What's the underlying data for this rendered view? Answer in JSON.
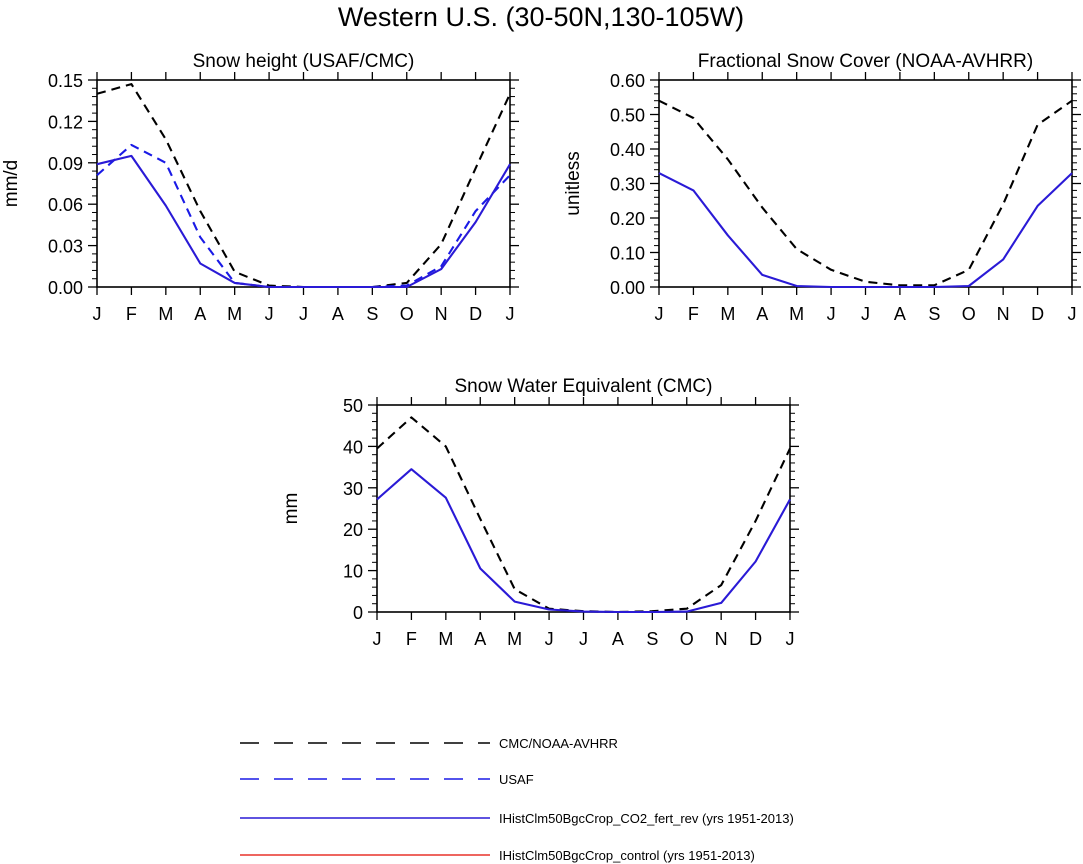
{
  "title": "Western U.S. (30-50N,130-105W)",
  "months": [
    "J",
    "F",
    "M",
    "A",
    "M",
    "J",
    "J",
    "A",
    "S",
    "O",
    "N",
    "D",
    "J"
  ],
  "colors": {
    "obs": "#000000",
    "usaf": "#1a1ae6",
    "co2": "#2a1ad6",
    "control": "#e8322a"
  },
  "legend": [
    {
      "label": "CMC/NOAA-AVHRR",
      "color": "#000000",
      "dash": true
    },
    {
      "label": "USAF",
      "color": "#1a1ae6",
      "dash": true
    },
    {
      "label": "IHistClm50BgcCrop_CO2_fert_rev (yrs 1951-2013)",
      "color": "#2a1ad6",
      "dash": false
    },
    {
      "label": "IHistClm50BgcCrop_control (yrs 1951-2013)",
      "color": "#e8322a",
      "dash": false
    }
  ],
  "chart_data": [
    {
      "type": "line",
      "title": "Snow height (USAF/CMC)",
      "ylabel": "mm/d",
      "categories": [
        "J",
        "F",
        "M",
        "A",
        "M",
        "J",
        "J",
        "A",
        "S",
        "O",
        "N",
        "D",
        "J"
      ],
      "ylim": [
        0,
        0.15
      ],
      "yticks": [
        "0.00",
        "0.03",
        "0.06",
        "0.09",
        "0.12",
        "0.15"
      ],
      "series": [
        {
          "name": "CMC/NOAA-AVHRR",
          "style": "dash-black",
          "values": [
            0.14,
            0.147,
            0.107,
            0.055,
            0.011,
            0.001,
            0.0,
            0.0,
            0.0,
            0.003,
            0.031,
            0.086,
            0.14
          ]
        },
        {
          "name": "USAF",
          "style": "dash-blue",
          "values": [
            0.081,
            0.103,
            0.09,
            0.036,
            0.003,
            0.0,
            0.0,
            0.0,
            0.0,
            0.001,
            0.015,
            0.055,
            0.081
          ]
        },
        {
          "name": "IHistClm50BgcCrop_CO2_fert_rev (yrs 1951-2013)",
          "style": "solid-blue",
          "values": [
            0.089,
            0.095,
            0.059,
            0.017,
            0.003,
            0.0,
            0.0,
            0.0,
            0.0,
            0.0,
            0.013,
            0.047,
            0.089
          ]
        }
      ]
    },
    {
      "type": "line",
      "title": "Fractional Snow Cover (NOAA-AVHRR)",
      "ylabel": "unitless",
      "categories": [
        "J",
        "F",
        "M",
        "A",
        "M",
        "J",
        "J",
        "A",
        "S",
        "O",
        "N",
        "D",
        "J"
      ],
      "ylim": [
        0,
        0.6
      ],
      "yticks": [
        "0.00",
        "0.10",
        "0.20",
        "0.30",
        "0.40",
        "0.50",
        "0.60"
      ],
      "series": [
        {
          "name": "CMC/NOAA-AVHRR",
          "style": "dash-black",
          "values": [
            0.54,
            0.49,
            0.37,
            0.23,
            0.11,
            0.05,
            0.015,
            0.005,
            0.005,
            0.05,
            0.24,
            0.47,
            0.54
          ]
        },
        {
          "name": "IHistClm50BgcCrop_CO2_fert_rev (yrs 1951-2013)",
          "style": "solid-blue",
          "values": [
            0.33,
            0.28,
            0.15,
            0.035,
            0.003,
            0.0,
            0.0,
            0.0,
            0.0,
            0.003,
            0.08,
            0.235,
            0.33
          ]
        }
      ]
    },
    {
      "type": "line",
      "title": "Snow Water Equivalent (CMC)",
      "ylabel": "mm",
      "categories": [
        "J",
        "F",
        "M",
        "A",
        "M",
        "J",
        "J",
        "A",
        "S",
        "O",
        "N",
        "D",
        "J"
      ],
      "ylim": [
        0,
        50
      ],
      "yticks": [
        "0",
        "10",
        "20",
        "30",
        "40",
        "50"
      ],
      "series": [
        {
          "name": "CMC/NOAA-AVHRR",
          "style": "dash-black",
          "values": [
            39.5,
            47,
            40,
            22.5,
            5.5,
            0.8,
            0.2,
            0.0,
            0.2,
            0.8,
            6.5,
            22,
            39.5
          ]
        },
        {
          "name": "IHistClm50BgcCrop_CO2_fert_rev (yrs 1951-2013)",
          "style": "solid-blue",
          "values": [
            27.2,
            34.5,
            27.6,
            10.5,
            2.5,
            0.6,
            0.1,
            0.0,
            0.0,
            0.1,
            2.2,
            12.2,
            27.2
          ]
        }
      ]
    }
  ]
}
